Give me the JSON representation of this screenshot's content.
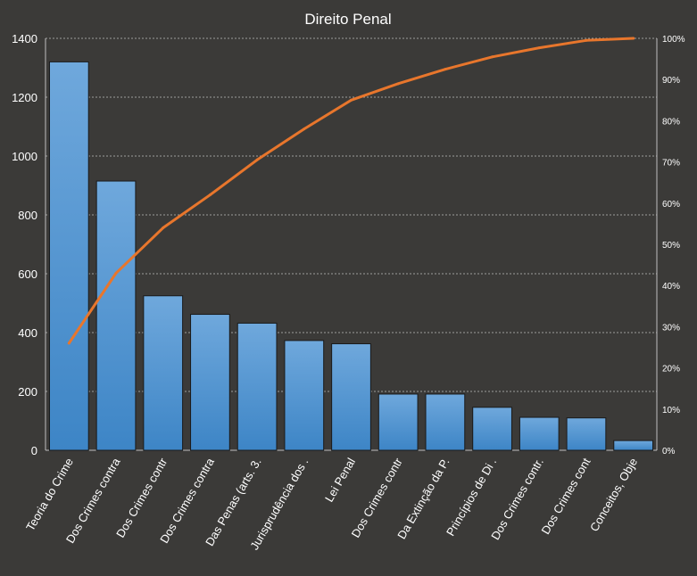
{
  "chart_data": {
    "type": "bar",
    "title": "Direito Penal",
    "categories": [
      "Teoria do Crime",
      "Dos Crimes contra",
      "Dos Crimes contr",
      "Dos Crimes contra",
      "Das Penas (arts. 3.",
      "Jurisprudência dos .",
      "Lei Penal",
      "Dos Crimes contr",
      "Da Extinção da P.",
      "Princípios de Di .",
      "Dos Crimes contr.",
      "Dos Crimes cont",
      "Conceitos, Obje"
    ],
    "series": [
      {
        "type": "bar",
        "axis": "left",
        "values": [
          1320,
          915,
          525,
          462,
          432,
          373,
          362,
          191,
          191,
          146,
          112,
          110,
          33
        ]
      },
      {
        "type": "line",
        "axis": "right",
        "values": [
          0.26,
          0.43,
          0.54,
          0.62,
          0.705,
          0.78,
          0.85,
          0.89,
          0.925,
          0.955,
          0.977,
          0.995,
          1.0
        ]
      }
    ],
    "ylim": [
      0,
      1400
    ],
    "yticks": [
      0,
      200,
      400,
      600,
      800,
      1000,
      1200,
      1400
    ],
    "y2lim": [
      0,
      1
    ],
    "y2ticks": [
      "0%",
      "10%",
      "20%",
      "30%",
      "40%",
      "50%",
      "60%",
      "70%",
      "80%",
      "90%",
      "100%"
    ],
    "grid": true,
    "legend": "none",
    "colors": {
      "background": "#3b3a38",
      "bar_top": "#6fa8dc",
      "bar_bottom": "#3d85c6",
      "bar_outline": "#1a1a1a",
      "line": "#e8762c",
      "grid": "#bfbfbf",
      "text": "#ffffff"
    }
  }
}
